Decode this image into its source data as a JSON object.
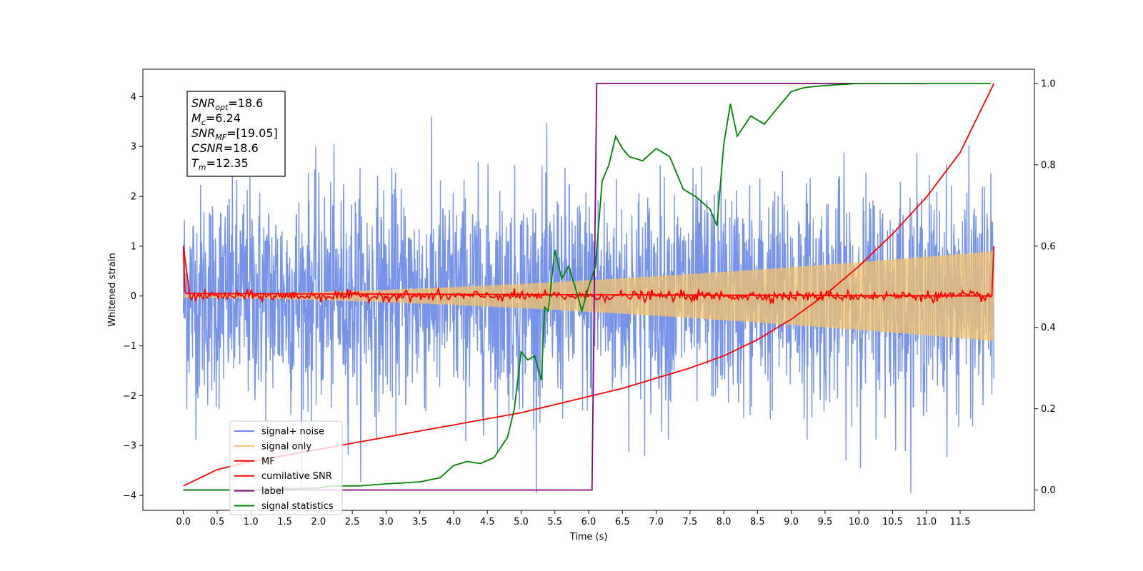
{
  "chart_data": {
    "type": "line",
    "xlabel": "Time (s)",
    "ylabel": "Whitened strain",
    "xlim": [
      -0.6,
      12.6
    ],
    "ylim": [
      -4.3,
      4.55
    ],
    "y2lim": [
      -0.05,
      1.035
    ],
    "x_ticks": [
      0.0,
      0.5,
      1.0,
      1.5,
      2.0,
      2.5,
      3.0,
      3.5,
      4.0,
      4.5,
      5.0,
      5.5,
      6.0,
      6.5,
      7.0,
      7.5,
      8.0,
      8.5,
      9.0,
      9.5,
      10.0,
      10.5,
      11.0,
      11.5
    ],
    "x_tick_labels": [
      "0.0",
      "0.5",
      "1.0",
      "1.5",
      "2.0",
      "2.5",
      "3.0",
      "3.5",
      "4.0",
      "4.5",
      "5.0",
      "5.5",
      "6.0",
      "6.5",
      "7.0",
      "7.5",
      "8.0",
      "8.5",
      "9.0",
      "9.5",
      "10.0",
      "10.5",
      "11.0",
      "11.5"
    ],
    "y_ticks": [
      -4,
      -3,
      -2,
      -1,
      0,
      1,
      2,
      3,
      4
    ],
    "y_tick_labels": [
      "−4",
      "−3",
      "−2",
      "−1",
      "0",
      "1",
      "2",
      "3",
      "4"
    ],
    "y2_ticks": [
      0.0,
      0.2,
      0.4,
      0.6,
      0.8,
      1.0
    ],
    "y2_tick_labels": [
      "0.0",
      "0.2",
      "0.4",
      "0.6",
      "0.8",
      "1.0"
    ],
    "grid": false,
    "legend_position": "lower-left",
    "stats": [
      {
        "base": "SNR",
        "sub": "opt",
        "rest": "=18.6"
      },
      {
        "base": "M",
        "sub": "c",
        "rest": "=6.24"
      },
      {
        "base": "SNR",
        "sub": "MF",
        "rest": "=[19.05]"
      },
      {
        "base": "CSNR",
        "sub": "",
        "rest": "=18.6"
      },
      {
        "base": "T",
        "sub": "m",
        "rest": "=12.35"
      }
    ],
    "series": [
      {
        "name": "signal+ noise",
        "color": "#6f8de8",
        "axis": "left",
        "kind": "noise",
        "x_range": [
          0.0,
          12.0
        ],
        "amplitude": 1.1,
        "points": 2400
      },
      {
        "name": "signal only",
        "color": "#f5c26b",
        "axis": "left",
        "kind": "chirp",
        "x_range": [
          0.0,
          12.0
        ],
        "amplitude_start": 0.03,
        "amplitude_end": 0.9
      },
      {
        "name": "MF",
        "color": "#ff0000",
        "axis": "left",
        "kind": "mf",
        "x": [
          0.0,
          0.02,
          0.05,
          0.1,
          11.95,
          12.0
        ],
        "y": [
          1.0,
          0.1,
          0.05,
          0.0,
          0.0,
          1.0
        ]
      },
      {
        "name": "cumilative SNR",
        "color": "#ff0000",
        "axis": "right",
        "x": [
          0.0,
          0.5,
          1.0,
          1.5,
          2.0,
          2.5,
          3.0,
          3.5,
          4.0,
          4.5,
          5.0,
          5.5,
          6.0,
          6.5,
          7.0,
          7.5,
          8.0,
          8.5,
          9.0,
          9.5,
          10.0,
          10.5,
          11.0,
          11.5,
          12.0
        ],
        "y": [
          0.01,
          0.05,
          0.07,
          0.085,
          0.1,
          0.115,
          0.13,
          0.145,
          0.16,
          0.175,
          0.19,
          0.21,
          0.23,
          0.25,
          0.275,
          0.3,
          0.33,
          0.37,
          0.42,
          0.48,
          0.55,
          0.63,
          0.72,
          0.83,
          1.0
        ]
      },
      {
        "name": "label",
        "color": "#800080",
        "axis": "right",
        "x": [
          0.0,
          6.05,
          6.12,
          11.0
        ],
        "y": [
          0.0,
          0.0,
          1.0,
          1.0
        ]
      },
      {
        "name": "signal statistics",
        "color": "#008000",
        "axis": "right",
        "x": [
          0.0,
          1.0,
          2.0,
          2.2,
          2.6,
          3.0,
          3.5,
          3.8,
          4.0,
          4.2,
          4.4,
          4.6,
          4.8,
          4.9,
          5.0,
          5.1,
          5.2,
          5.3,
          5.35,
          5.4,
          5.5,
          5.6,
          5.7,
          5.8,
          5.9,
          6.0,
          6.1,
          6.2,
          6.3,
          6.4,
          6.5,
          6.6,
          6.8,
          7.0,
          7.2,
          7.4,
          7.6,
          7.8,
          7.9,
          8.0,
          8.1,
          8.2,
          8.4,
          8.6,
          8.8,
          9.0,
          9.2,
          9.5,
          10.0,
          10.5,
          11.0,
          11.5,
          11.95
        ],
        "y": [
          0.0,
          0.0,
          0.005,
          0.01,
          0.01,
          0.015,
          0.02,
          0.03,
          0.06,
          0.07,
          0.065,
          0.08,
          0.13,
          0.2,
          0.34,
          0.32,
          0.33,
          0.27,
          0.45,
          0.44,
          0.59,
          0.52,
          0.55,
          0.5,
          0.44,
          0.5,
          0.55,
          0.76,
          0.8,
          0.87,
          0.84,
          0.82,
          0.81,
          0.84,
          0.82,
          0.74,
          0.72,
          0.69,
          0.65,
          0.85,
          0.95,
          0.87,
          0.92,
          0.9,
          0.94,
          0.98,
          0.99,
          0.995,
          1.0,
          1.0,
          1.0,
          1.0,
          1.0
        ]
      }
    ]
  }
}
